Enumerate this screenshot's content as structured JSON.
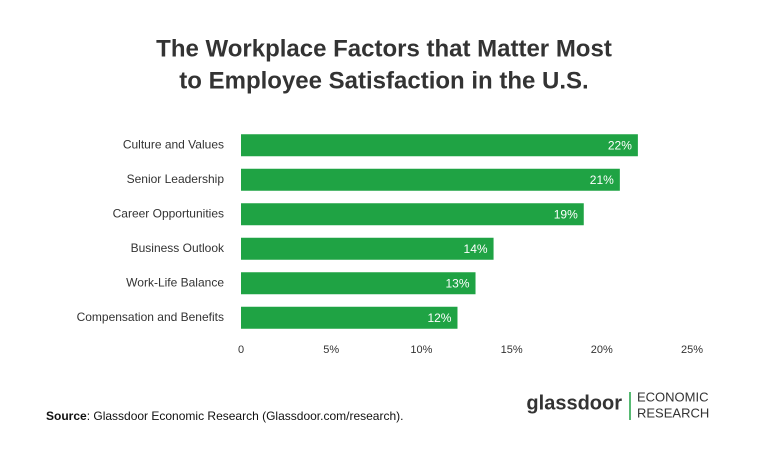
{
  "chart_data": {
    "type": "hbar",
    "title": [
      "The Workplace Factors that Matter Most",
      "to Employee Satisfaction in the U.S."
    ],
    "categories": [
      "Culture and Values",
      "Senior Leadership",
      "Career Opportunities",
      "Business Outlook",
      "Work-Life Balance",
      "Compensation and Benefits"
    ],
    "values": [
      22,
      21,
      19,
      14,
      13,
      12
    ],
    "value_labels": [
      "22%",
      "21%",
      "19%",
      "14%",
      "13%",
      "12%"
    ],
    "color": "#1fa344",
    "xlim": [
      0,
      25
    ],
    "xticks": [
      0,
      {
        "value": 5,
        "label": "5%"
      },
      {
        "value": 10,
        "label": "10%"
      },
      {
        "value": 15,
        "label": "15%"
      },
      {
        "value": 20,
        "label": "20%"
      },
      {
        "value": 25,
        "label": "25%"
      }
    ],
    "grid": false,
    "source_label": "Source",
    "source_text": ": Glassdoor Economic Research (Glassdoor.com/research).",
    "logo": {
      "brand": "glassdoor",
      "lines": [
        "ECONOMIC",
        "RESEARCH"
      ]
    }
  }
}
